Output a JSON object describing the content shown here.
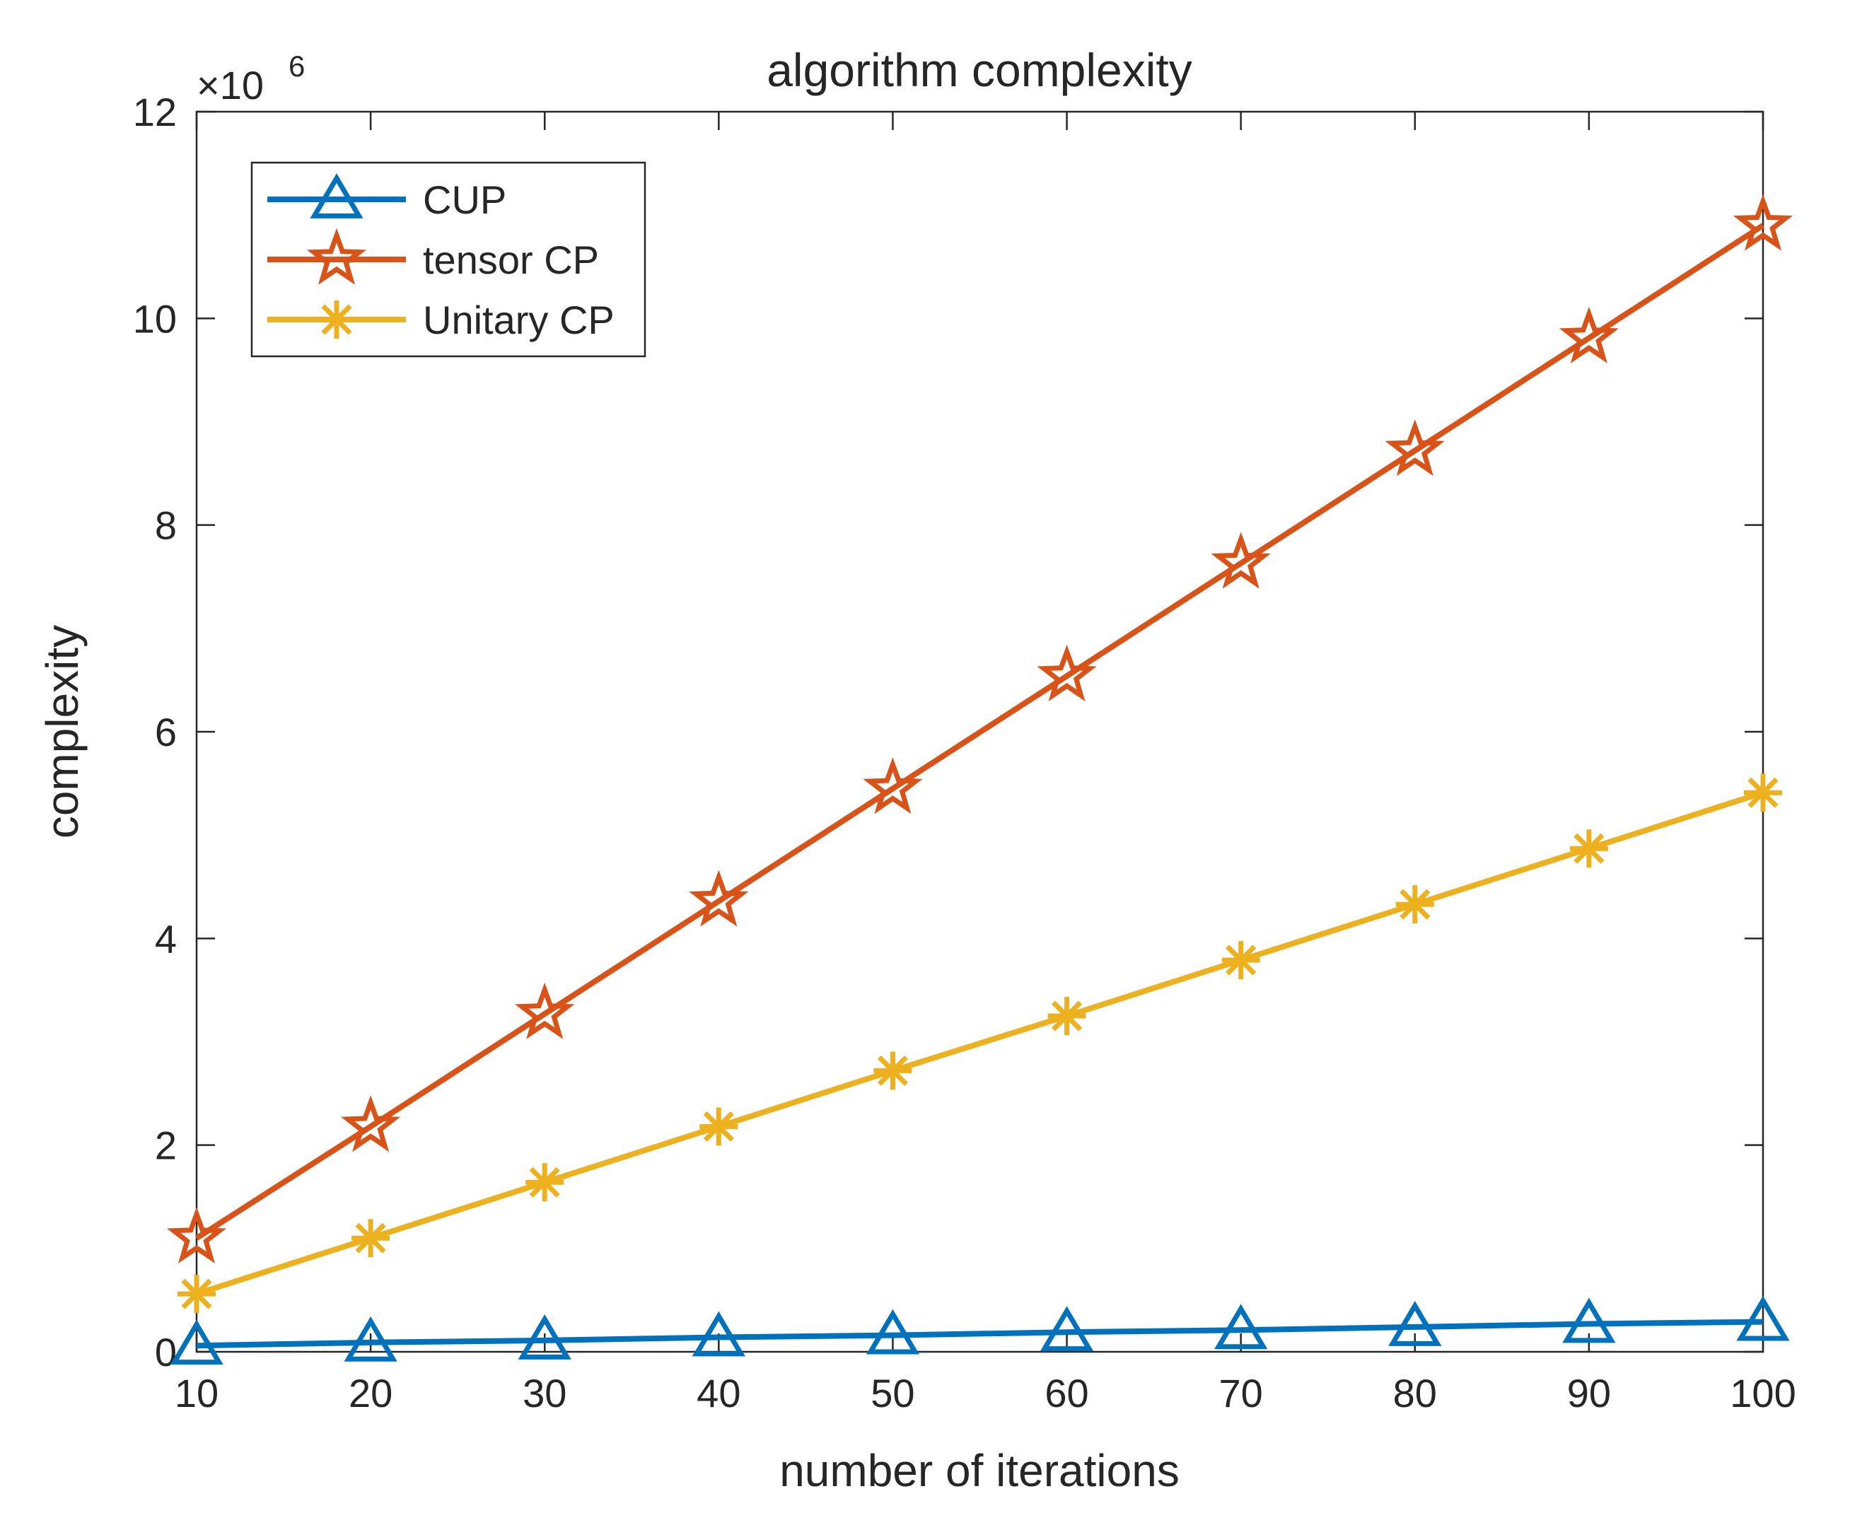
{
  "chart_data": {
    "type": "line",
    "title": "algorithm complexity",
    "xlabel": "number of iterations",
    "ylabel": "complexity",
    "y_exponent_label": "×10",
    "y_exponent_power": "6",
    "xlim": [
      10,
      100
    ],
    "ylim": [
      0,
      12
    ],
    "x_scale": 1000000,
    "xticks": [
      10,
      20,
      30,
      40,
      50,
      60,
      70,
      80,
      90,
      100
    ],
    "yticks": [
      0,
      2,
      4,
      6,
      8,
      10,
      12
    ],
    "grid": false,
    "legend_position": "top-left",
    "x": [
      10,
      20,
      30,
      40,
      50,
      60,
      70,
      80,
      90,
      100
    ],
    "series": [
      {
        "name": "CUP",
        "color": "#0072BD",
        "marker": "triangle",
        "values": [
          0.06,
          0.09,
          0.11,
          0.14,
          0.16,
          0.19,
          0.21,
          0.24,
          0.27,
          0.29
        ]
      },
      {
        "name": "tensor CP",
        "color": "#D95319",
        "marker": "star",
        "values": [
          1.1,
          2.18,
          3.27,
          4.36,
          5.45,
          6.54,
          7.63,
          8.72,
          9.81,
          10.9
        ]
      },
      {
        "name": "Unitary CP",
        "color": "#EDB120",
        "marker": "asterisk",
        "values": [
          0.56,
          1.1,
          1.64,
          2.18,
          2.72,
          3.25,
          3.79,
          4.33,
          4.87,
          5.41
        ]
      }
    ]
  }
}
